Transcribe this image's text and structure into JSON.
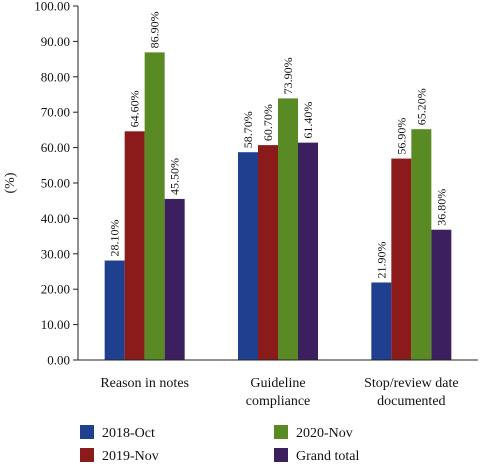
{
  "chart_data": {
    "type": "bar",
    "ylabel": "(%)",
    "ylim": [
      0,
      100
    ],
    "yticks": [
      "0.00",
      "10.00",
      "20.00",
      "30.00",
      "40.00",
      "50.00",
      "60.00",
      "70.00",
      "80.00",
      "90.00",
      "100.00"
    ],
    "categories": [
      [
        "Reason in notes"
      ],
      [
        "Guideline",
        "compliance"
      ],
      [
        "Stop/review date",
        "documented"
      ]
    ],
    "series": [
      {
        "name": "2018-Oct",
        "color": "#1f3f8f",
        "values": [
          28.1,
          58.7,
          21.9
        ],
        "labels": [
          "28.10%",
          "58.70%",
          "21.90%"
        ]
      },
      {
        "name": "2019-Nov",
        "color": "#8b1a1a",
        "values": [
          64.6,
          60.7,
          56.9
        ],
        "labels": [
          "64.60%",
          "60.70%",
          "56.90%"
        ]
      },
      {
        "name": "2020-Nov",
        "color": "#5a8a23",
        "values": [
          86.9,
          73.9,
          65.2
        ],
        "labels": [
          "86.90%",
          "73.90%",
          "65.20%"
        ]
      },
      {
        "name": "Grand total",
        "color": "#3c1f5e",
        "values": [
          45.5,
          61.4,
          36.8
        ],
        "labels": [
          "45.50%",
          "61.40%",
          "36.80%"
        ]
      }
    ],
    "legend": "bottom",
    "grid": false
  }
}
